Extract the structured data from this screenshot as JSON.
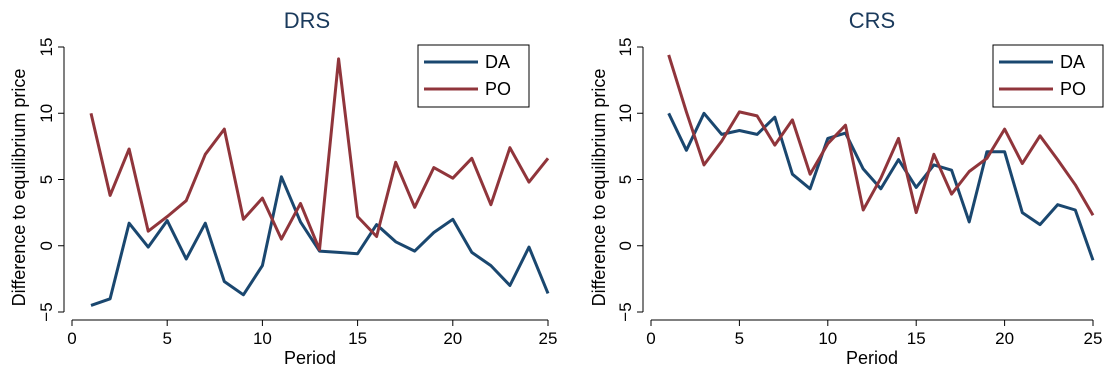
{
  "chart_data": [
    {
      "type": "line",
      "title": "DRS",
      "xlabel": "Period",
      "ylabel": "Difference to equilibrium price",
      "xlim": [
        0,
        25
      ],
      "ylim": [
        -5,
        15
      ],
      "xticks": [
        0,
        5,
        10,
        15,
        20,
        25
      ],
      "xtick_labels": [
        "0",
        "5",
        "10",
        "15",
        "20",
        "25"
      ],
      "yticks": [
        -5,
        0,
        5,
        10,
        15
      ],
      "ytick_labels": [
        "−5",
        "0",
        "5",
        "10",
        "15"
      ],
      "grid": false,
      "legend_position": "top-right",
      "x": [
        1,
        2,
        3,
        4,
        5,
        6,
        7,
        8,
        9,
        10,
        11,
        12,
        13,
        14,
        15,
        16,
        17,
        18,
        19,
        20,
        21,
        22,
        23,
        24,
        25
      ],
      "series": [
        {
          "name": "DA",
          "color": "#1a476f",
          "values": [
            -4.5,
            -4.0,
            1.7,
            -0.1,
            1.9,
            -1.0,
            1.7,
            -2.7,
            -3.7,
            -1.5,
            5.2,
            1.8,
            -0.4,
            -0.5,
            -0.6,
            1.6,
            0.3,
            -0.4,
            1.0,
            2.0,
            -0.5,
            -1.5,
            -3.0,
            -0.1,
            -3.6
          ]
        },
        {
          "name": "PO",
          "color": "#90353b",
          "values": [
            10.0,
            3.8,
            7.3,
            1.1,
            2.2,
            3.4,
            6.9,
            8.8,
            2.0,
            3.6,
            0.5,
            3.2,
            -0.3,
            14.1,
            2.2,
            0.7,
            6.3,
            2.9,
            5.9,
            5.1,
            6.6,
            3.1,
            7.4,
            4.8,
            6.6
          ]
        }
      ]
    },
    {
      "type": "line",
      "title": "CRS",
      "xlabel": "Period",
      "ylabel": "Difference to equilibrium price",
      "xlim": [
        0,
        25
      ],
      "ylim": [
        -5,
        15
      ],
      "xticks": [
        0,
        5,
        10,
        15,
        20,
        25
      ],
      "xtick_labels": [
        "0",
        "5",
        "10",
        "15",
        "20",
        "25"
      ],
      "yticks": [
        -5,
        0,
        5,
        10,
        15
      ],
      "ytick_labels": [
        "−5",
        "0",
        "5",
        "10",
        "15"
      ],
      "grid": false,
      "legend_position": "top-right",
      "x": [
        1,
        2,
        3,
        4,
        5,
        6,
        7,
        8,
        9,
        10,
        11,
        12,
        13,
        14,
        15,
        16,
        17,
        18,
        19,
        20,
        21,
        22,
        23,
        24,
        25
      ],
      "series": [
        {
          "name": "DA",
          "color": "#1a476f",
          "values": [
            10.0,
            7.2,
            10.0,
            8.4,
            8.7,
            8.4,
            9.7,
            5.4,
            4.3,
            8.1,
            8.5,
            5.8,
            4.3,
            6.5,
            4.4,
            6.1,
            5.7,
            1.8,
            7.1,
            7.1,
            2.5,
            1.6,
            3.1,
            2.7,
            -1.1
          ]
        },
        {
          "name": "PO",
          "color": "#90353b",
          "values": [
            14.4,
            10.1,
            6.1,
            7.9,
            10.1,
            9.8,
            7.6,
            9.5,
            5.4,
            7.7,
            9.1,
            2.7,
            5.1,
            8.1,
            2.5,
            6.9,
            3.9,
            5.6,
            6.6,
            8.8,
            6.2,
            8.3,
            6.5,
            4.6,
            2.3
          ]
        }
      ]
    }
  ]
}
